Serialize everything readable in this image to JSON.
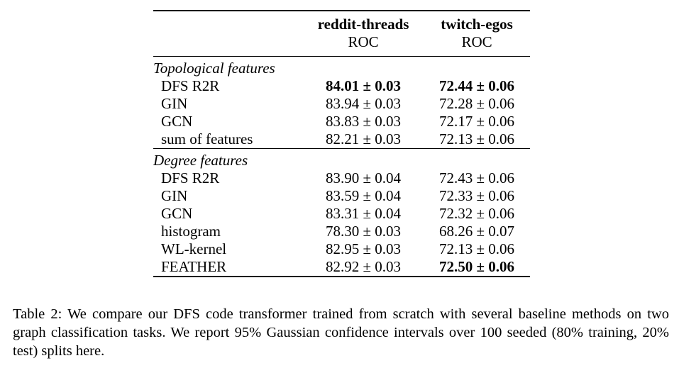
{
  "table": {
    "columns": [
      {
        "name": "reddit-threads",
        "metric": "ROC"
      },
      {
        "name": "twitch-egos",
        "metric": "ROC"
      }
    ],
    "groups": [
      {
        "title": "Topological features",
        "rows": [
          {
            "method": "DFS R2R",
            "a": "84.01 ± 0.03",
            "a_bold": true,
            "b": "72.44 ± 0.06",
            "b_bold": true
          },
          {
            "method": "GIN",
            "a": "83.94 ± 0.03",
            "a_bold": false,
            "b": "72.28 ± 0.06",
            "b_bold": false
          },
          {
            "method": "GCN",
            "a": "83.83 ± 0.03",
            "a_bold": false,
            "b": "72.17 ± 0.06",
            "b_bold": false
          },
          {
            "method": "sum of features",
            "a": "82.21 ± 0.03",
            "a_bold": false,
            "b": "72.13 ± 0.06",
            "b_bold": false
          }
        ]
      },
      {
        "title": "Degree features",
        "rows": [
          {
            "method": "DFS R2R",
            "a": "83.90 ± 0.04",
            "a_bold": false,
            "b": "72.43 ± 0.06",
            "b_bold": false
          },
          {
            "method": "GIN",
            "a": "83.59 ± 0.04",
            "a_bold": false,
            "b": "72.33 ± 0.06",
            "b_bold": false
          },
          {
            "method": "GCN",
            "a": "83.31 ± 0.04",
            "a_bold": false,
            "b": "72.32 ± 0.06",
            "b_bold": false
          },
          {
            "method": "histogram",
            "a": "78.30 ± 0.03",
            "a_bold": false,
            "b": "68.26 ± 0.07",
            "b_bold": false
          },
          {
            "method": "WL-kernel",
            "a": "82.95 ± 0.03",
            "a_bold": false,
            "b": "72.13 ± 0.06",
            "b_bold": false
          },
          {
            "method": "FEATHER",
            "a": "82.92 ± 0.03",
            "a_bold": false,
            "b": "72.50 ± 0.06",
            "b_bold": true
          }
        ]
      }
    ]
  },
  "caption": "Table 2: We compare our DFS code transformer trained from scratch with several baseline methods on two graph classification tasks. We report 95% Gaussian confidence intervals over 100 seeded (80% training, 20% test) splits here."
}
